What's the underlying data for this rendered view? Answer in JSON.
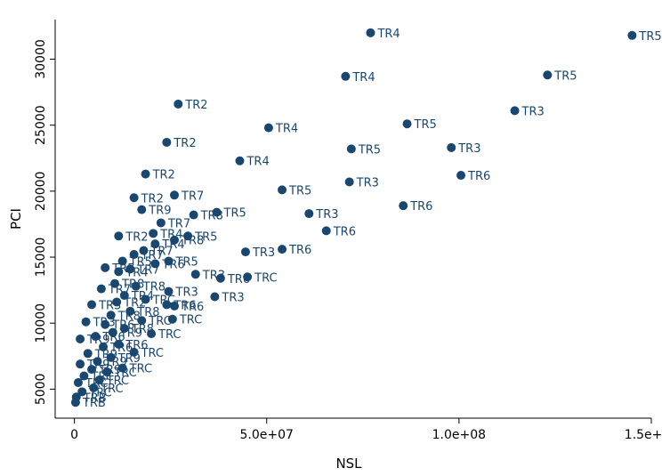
{
  "chart_data": {
    "type": "scatter",
    "title": "",
    "xlabel": "NSL",
    "ylabel": "PCI",
    "xlim": [
      -5000000,
      150000000
    ],
    "ylim": [
      2800,
      33000
    ],
    "grid": false,
    "legend": "none",
    "x_ticks": [
      0,
      50000000,
      100000000,
      150000000
    ],
    "x_tick_labels": [
      "0",
      "5.0e+07",
      "1.0e+08",
      "1.5e+08"
    ],
    "y_ticks": [
      5000,
      10000,
      15000,
      20000,
      25000,
      30000
    ],
    "y_tick_labels": [
      "5000",
      "10000",
      "15000",
      "20000",
      "25000",
      "30000"
    ],
    "marker_color": "#1a476f",
    "points": [
      {
        "x": 145000000,
        "y": 31800,
        "label": "TR5"
      },
      {
        "x": 77000000,
        "y": 32000,
        "label": "TR4"
      },
      {
        "x": 70500000,
        "y": 28700,
        "label": "TR4"
      },
      {
        "x": 123000000,
        "y": 28800,
        "label": "TR5"
      },
      {
        "x": 114500000,
        "y": 26100,
        "label": "TR3"
      },
      {
        "x": 27000000,
        "y": 26600,
        "label": "TR2"
      },
      {
        "x": 86500000,
        "y": 25100,
        "label": "TR5"
      },
      {
        "x": 50500000,
        "y": 24800,
        "label": "TR4"
      },
      {
        "x": 24000000,
        "y": 23700,
        "label": "TR2"
      },
      {
        "x": 98000000,
        "y": 23300,
        "label": "TR3"
      },
      {
        "x": 72000000,
        "y": 23200,
        "label": "TR5"
      },
      {
        "x": 43000000,
        "y": 22300,
        "label": "TR4"
      },
      {
        "x": 100500000,
        "y": 21200,
        "label": "TR6"
      },
      {
        "x": 18500000,
        "y": 21300,
        "label": "TR2"
      },
      {
        "x": 71500000,
        "y": 20700,
        "label": "TR3"
      },
      {
        "x": 54000000,
        "y": 20100,
        "label": "TR5"
      },
      {
        "x": 26000000,
        "y": 19700,
        "label": "TR7"
      },
      {
        "x": 15500000,
        "y": 19500,
        "label": "TR2"
      },
      {
        "x": 85500000,
        "y": 18900,
        "label": "TR6"
      },
      {
        "x": 17500000,
        "y": 18600,
        "label": "TR9"
      },
      {
        "x": 61000000,
        "y": 18300,
        "label": "TR3"
      },
      {
        "x": 37000000,
        "y": 18400,
        "label": "TR5"
      },
      {
        "x": 31000000,
        "y": 18200,
        "label": "TR8"
      },
      {
        "x": 22500000,
        "y": 17600,
        "label": "TR7"
      },
      {
        "x": 65500000,
        "y": 17000,
        "label": "TR6"
      },
      {
        "x": 20500000,
        "y": 16800,
        "label": "TR4"
      },
      {
        "x": 11500000,
        "y": 16600,
        "label": "TR2"
      },
      {
        "x": 29500000,
        "y": 16600,
        "label": "TR5"
      },
      {
        "x": 26000000,
        "y": 16300,
        "label": "TR8"
      },
      {
        "x": 21000000,
        "y": 16000,
        "label": "TR4"
      },
      {
        "x": 54000000,
        "y": 15600,
        "label": "TR6"
      },
      {
        "x": 44500000,
        "y": 15400,
        "label": "TR3"
      },
      {
        "x": 18000000,
        "y": 15500,
        "label": "TR7"
      },
      {
        "x": 15500000,
        "y": 15200,
        "label": "TR7"
      },
      {
        "x": 24500000,
        "y": 14700,
        "label": "TR5"
      },
      {
        "x": 12500000,
        "y": 14700,
        "label": "TR5"
      },
      {
        "x": 21000000,
        "y": 14500,
        "label": "TR6"
      },
      {
        "x": 8000000,
        "y": 14200,
        "label": "TR5"
      },
      {
        "x": 14500000,
        "y": 14100,
        "label": "TR7"
      },
      {
        "x": 11500000,
        "y": 13900,
        "label": "TR4"
      },
      {
        "x": 31500000,
        "y": 13700,
        "label": "TR3"
      },
      {
        "x": 38000000,
        "y": 13400,
        "label": "TR6"
      },
      {
        "x": 45000000,
        "y": 13500,
        "label": "TRC"
      },
      {
        "x": 10500000,
        "y": 13000,
        "label": "TR8"
      },
      {
        "x": 16000000,
        "y": 12800,
        "label": "TR8"
      },
      {
        "x": 7000000,
        "y": 12600,
        "label": "TR7"
      },
      {
        "x": 24500000,
        "y": 12400,
        "label": "TR3"
      },
      {
        "x": 36500000,
        "y": 12000,
        "label": "TR3"
      },
      {
        "x": 13000000,
        "y": 12100,
        "label": "TR4"
      },
      {
        "x": 18500000,
        "y": 11800,
        "label": "TRC"
      },
      {
        "x": 11000000,
        "y": 11600,
        "label": "TR2"
      },
      {
        "x": 24000000,
        "y": 11400,
        "label": "TR6"
      },
      {
        "x": 26000000,
        "y": 11300,
        "label": "TR6"
      },
      {
        "x": 4500000,
        "y": 11400,
        "label": "TR3"
      },
      {
        "x": 14500000,
        "y": 10900,
        "label": "TR8"
      },
      {
        "x": 9500000,
        "y": 10600,
        "label": "TR8"
      },
      {
        "x": 25500000,
        "y": 10300,
        "label": "TRC"
      },
      {
        "x": 17500000,
        "y": 10200,
        "label": "TRC"
      },
      {
        "x": 3000000,
        "y": 10100,
        "label": "TR3"
      },
      {
        "x": 8000000,
        "y": 9900,
        "label": "TR6"
      },
      {
        "x": 13000000,
        "y": 9600,
        "label": "TR8"
      },
      {
        "x": 20000000,
        "y": 9200,
        "label": "TRC"
      },
      {
        "x": 10000000,
        "y": 9300,
        "label": "TR9"
      },
      {
        "x": 5500000,
        "y": 9000,
        "label": "TR6"
      },
      {
        "x": 1500000,
        "y": 8800,
        "label": "TR9"
      },
      {
        "x": 11500000,
        "y": 8400,
        "label": "TR6"
      },
      {
        "x": 7500000,
        "y": 8200,
        "label": "TR6"
      },
      {
        "x": 15500000,
        "y": 7800,
        "label": "TRC"
      },
      {
        "x": 3500000,
        "y": 7700,
        "label": "TR9"
      },
      {
        "x": 9500000,
        "y": 7400,
        "label": "TR9"
      },
      {
        "x": 6000000,
        "y": 7100,
        "label": "TR9"
      },
      {
        "x": 1500000,
        "y": 6900,
        "label": "TR9"
      },
      {
        "x": 12500000,
        "y": 6600,
        "label": "TRC"
      },
      {
        "x": 4500000,
        "y": 6500,
        "label": "TR9"
      },
      {
        "x": 8500000,
        "y": 6300,
        "label": "TRC"
      },
      {
        "x": 2500000,
        "y": 6000,
        "label": "TRC"
      },
      {
        "x": 6500000,
        "y": 5700,
        "label": "TRC"
      },
      {
        "x": 1000000,
        "y": 5500,
        "label": "TRC"
      },
      {
        "x": 5000000,
        "y": 5100,
        "label": "TRC"
      },
      {
        "x": 2000000,
        "y": 4800,
        "label": "TRC"
      },
      {
        "x": 500000,
        "y": 4400,
        "label": "TRB"
      },
      {
        "x": 300000,
        "y": 4000,
        "label": "TRB"
      }
    ]
  }
}
